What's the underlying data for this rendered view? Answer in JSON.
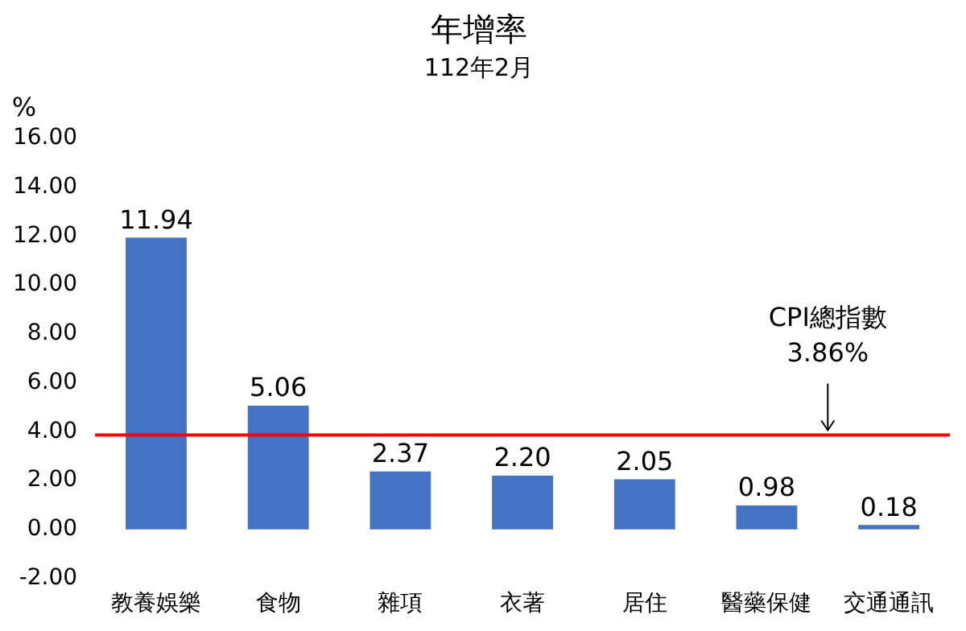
{
  "chart_data": {
    "type": "bar",
    "title": "年增率",
    "subtitle": "112年2月",
    "ylabel": "%",
    "categories": [
      "教養娛樂",
      "食物",
      "雜項",
      "衣著",
      "居住",
      "醫藥保健",
      "交通通訊"
    ],
    "values": [
      11.94,
      5.06,
      2.37,
      2.2,
      2.05,
      0.98,
      0.18
    ],
    "value_labels": [
      "11.94",
      "5.06",
      "2.37",
      "2.20",
      "2.05",
      "0.98",
      "0.18"
    ],
    "color": "#4472c4",
    "ylim": [
      -2,
      16
    ],
    "yticks": [
      {
        "value": -2,
        "label": "-2.00"
      },
      {
        "value": 0,
        "label": "0.00"
      },
      {
        "value": 2,
        "label": "2.00"
      },
      {
        "value": 4,
        "label": "4.00"
      },
      {
        "value": 6,
        "label": "6.00"
      },
      {
        "value": 8,
        "label": "8.00"
      },
      {
        "value": 10,
        "label": "10.00"
      },
      {
        "value": 12,
        "label": "12.00"
      },
      {
        "value": 14,
        "label": "14.00"
      },
      {
        "value": 16,
        "label": "16.00"
      }
    ],
    "ref_lines": [
      {
        "axis": "y",
        "value": 3.86,
        "label": "CPI總指數\n3.86%",
        "color": "#ff0000"
      }
    ],
    "grid": false,
    "legend": false
  }
}
